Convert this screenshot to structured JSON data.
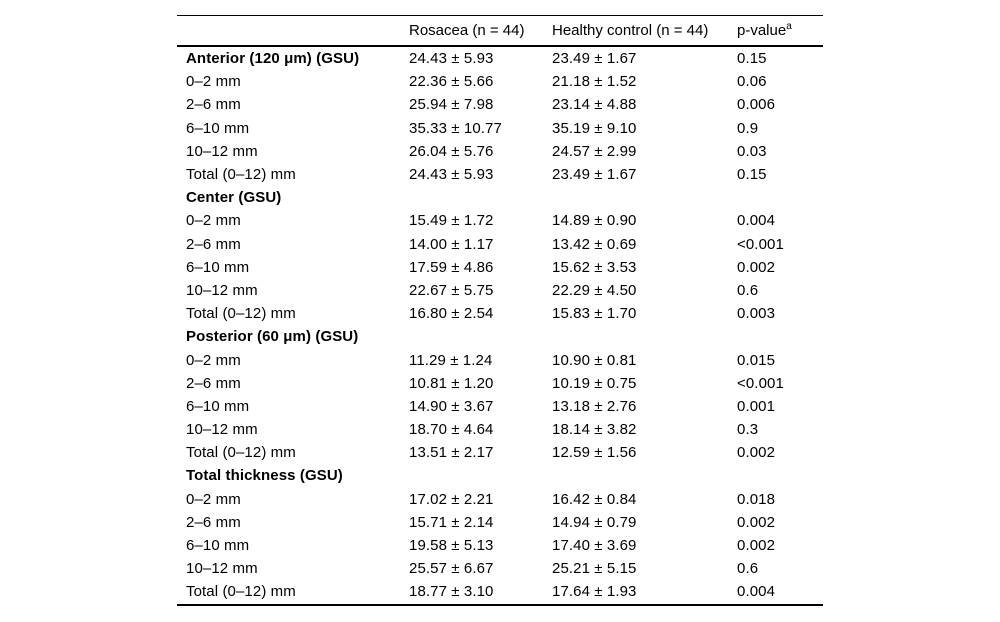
{
  "table": {
    "header": {
      "col_label": "",
      "col_rosacea": "Rosacea (n = 44)",
      "col_control": "Healthy control (n = 44)",
      "col_p_label": "p-value",
      "col_p_superscript": "a"
    },
    "rows": [
      {
        "label": "Anterior (120 μm) (GSU)",
        "bold": true,
        "rosacea": "24.43 ± 5.93",
        "control": "23.49 ± 1.67",
        "p": "0.15"
      },
      {
        "label": "0–2 mm",
        "bold": false,
        "rosacea": "22.36 ± 5.66",
        "control": "21.18 ± 1.52",
        "p": "0.06"
      },
      {
        "label": "2–6 mm",
        "bold": false,
        "rosacea": "25.94 ± 7.98",
        "control": "23.14 ± 4.88",
        "p": "0.006"
      },
      {
        "label": "6–10 mm",
        "bold": false,
        "rosacea": "35.33 ± 10.77",
        "control": "35.19 ± 9.10",
        "p": "0.9"
      },
      {
        "label": "10–12 mm",
        "bold": false,
        "rosacea": "26.04 ± 5.76",
        "control": "24.57 ± 2.99",
        "p": "0.03"
      },
      {
        "label": "Total (0–12) mm",
        "bold": false,
        "rosacea": "24.43 ± 5.93",
        "control": "23.49 ± 1.67",
        "p": "0.15"
      },
      {
        "label": "Center (GSU)",
        "bold": true,
        "rosacea": "",
        "control": "",
        "p": ""
      },
      {
        "label": "0–2 mm",
        "bold": false,
        "rosacea": "15.49 ± 1.72",
        "control": "14.89 ± 0.90",
        "p": "0.004"
      },
      {
        "label": "2–6 mm",
        "bold": false,
        "rosacea": "14.00 ± 1.17",
        "control": "13.42 ± 0.69",
        "p": "<0.001"
      },
      {
        "label": "6–10 mm",
        "bold": false,
        "rosacea": "17.59 ± 4.86",
        "control": "15.62 ± 3.53",
        "p": "0.002"
      },
      {
        "label": "10–12 mm",
        "bold": false,
        "rosacea": "22.67 ± 5.75",
        "control": "22.29 ± 4.50",
        "p": "0.6"
      },
      {
        "label": "Total (0–12) mm",
        "bold": false,
        "rosacea": "16.80 ± 2.54",
        "control": "15.83 ± 1.70",
        "p": "0.003"
      },
      {
        "label": "Posterior (60 μm) (GSU)",
        "bold": true,
        "rosacea": "",
        "control": "",
        "p": ""
      },
      {
        "label": "0–2 mm",
        "bold": false,
        "rosacea": "11.29 ± 1.24",
        "control": "10.90 ± 0.81",
        "p": "0.015"
      },
      {
        "label": "2–6 mm",
        "bold": false,
        "rosacea": "10.81 ± 1.20",
        "control": "10.19 ± 0.75",
        "p": "<0.001"
      },
      {
        "label": "6–10 mm",
        "bold": false,
        "rosacea": "14.90 ± 3.67",
        "control": "13.18 ± 2.76",
        "p": "0.001"
      },
      {
        "label": "10–12 mm",
        "bold": false,
        "rosacea": "18.70 ± 4.64",
        "control": "18.14 ± 3.82",
        "p": "0.3"
      },
      {
        "label": "Total (0–12) mm",
        "bold": false,
        "rosacea": "13.51 ± 2.17",
        "control": "12.59 ± 1.56",
        "p": "0.002"
      },
      {
        "label": "Total thickness (GSU)",
        "bold": true,
        "rosacea": "",
        "control": "",
        "p": ""
      },
      {
        "label": "0–2 mm",
        "bold": false,
        "rosacea": "17.02 ± 2.21",
        "control": "16.42 ± 0.84",
        "p": "0.018"
      },
      {
        "label": "2–6 mm",
        "bold": false,
        "rosacea": "15.71 ± 2.14",
        "control": "14.94 ± 0.79",
        "p": "0.002"
      },
      {
        "label": "6–10 mm",
        "bold": false,
        "rosacea": "19.58 ± 5.13",
        "control": "17.40 ± 3.69",
        "p": "0.002"
      },
      {
        "label": "10–12 mm",
        "bold": false,
        "rosacea": "25.57 ± 6.67",
        "control": "25.21 ± 5.15",
        "p": "0.6"
      },
      {
        "label": "Total (0–12) mm",
        "bold": false,
        "rosacea": "18.77 ± 3.10",
        "control": "17.64 ± 1.93",
        "p": "0.004"
      }
    ]
  }
}
